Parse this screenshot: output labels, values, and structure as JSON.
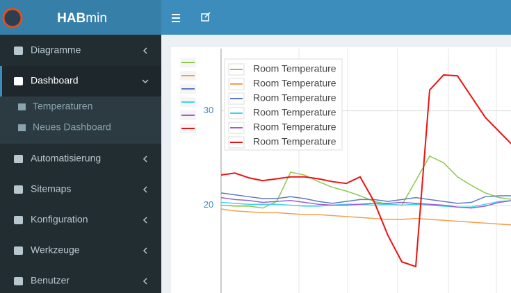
{
  "header": {
    "title": {
      "bold": "HAB",
      "regular": "min"
    }
  },
  "sidebar": {
    "items": [
      {
        "label": "Diagramme",
        "state": "collapsed"
      },
      {
        "label": "Dashboard",
        "state": "expanded",
        "children": [
          "Temperaturen",
          "Neues Dashboard"
        ]
      },
      {
        "label": "Automatisierung",
        "state": "collapsed"
      },
      {
        "label": "Sitemaps",
        "state": "collapsed"
      },
      {
        "label": "Konfiguration",
        "state": "collapsed"
      },
      {
        "label": "Werkzeuge",
        "state": "collapsed"
      },
      {
        "label": "Benutzer",
        "state": "collapsed"
      }
    ]
  },
  "chart_data": {
    "type": "line",
    "legend": "upper left",
    "grid": true,
    "ylim": [
      10.7,
      36
    ],
    "yticks": [
      20,
      30
    ],
    "series": [
      {
        "name": "Room Temperature",
        "color": "#8cc84b",
        "values": [
          20.0,
          19.9,
          19.9,
          19.7,
          20.4,
          23.5,
          23.2,
          22.5,
          21.9,
          21.5,
          21.0,
          20.4,
          20.1,
          20.0,
          22.6,
          25.2,
          24.5,
          23.0,
          22.1,
          21.3,
          20.8,
          20.6
        ]
      },
      {
        "name": "Room Temperature",
        "color": "#f0a050",
        "values": [
          19.6,
          19.4,
          19.3,
          19.2,
          19.2,
          19.1,
          19.0,
          19.0,
          18.9,
          18.8,
          18.7,
          18.6,
          18.5,
          18.5,
          18.6,
          18.5,
          18.4,
          18.3,
          18.2,
          18.1,
          18.0,
          17.9
        ]
      },
      {
        "name": "Room Temperature",
        "color": "#5b7dbf",
        "values": [
          21.3,
          21.1,
          20.9,
          20.7,
          20.7,
          20.9,
          20.7,
          20.4,
          20.2,
          20.4,
          20.6,
          20.6,
          20.4,
          20.6,
          20.8,
          20.6,
          20.4,
          20.2,
          20.3,
          20.9,
          21.0,
          21.0
        ]
      },
      {
        "name": "Room Temperature",
        "color": "#3fd4e8",
        "values": [
          20.3,
          20.2,
          20.1,
          20.1,
          20.1,
          20.0,
          19.9,
          19.9,
          20.0,
          20.1,
          20.1,
          20.0,
          20.1,
          20.0,
          20.1,
          20.0,
          19.9,
          19.8,
          19.8,
          20.1,
          20.4,
          20.5
        ]
      },
      {
        "name": "Room Temperature",
        "color": "#9a5fd6",
        "values": [
          20.8,
          20.6,
          20.5,
          20.3,
          20.4,
          20.5,
          20.3,
          20.1,
          20.0,
          20.0,
          20.1,
          20.2,
          20.2,
          20.3,
          20.2,
          20.1,
          20.0,
          19.8,
          19.7,
          19.9,
          20.3,
          20.5
        ]
      },
      {
        "name": "Room Temperature",
        "color": "#ee1111",
        "values": [
          23.2,
          23.4,
          22.9,
          22.6,
          22.8,
          23.0,
          23.0,
          22.8,
          22.5,
          22.3,
          23.0,
          20.4,
          16.8,
          14.0,
          13.5,
          32.2,
          33.8,
          33.7,
          31.5,
          29.3,
          27.8,
          26.3
        ]
      }
    ]
  }
}
